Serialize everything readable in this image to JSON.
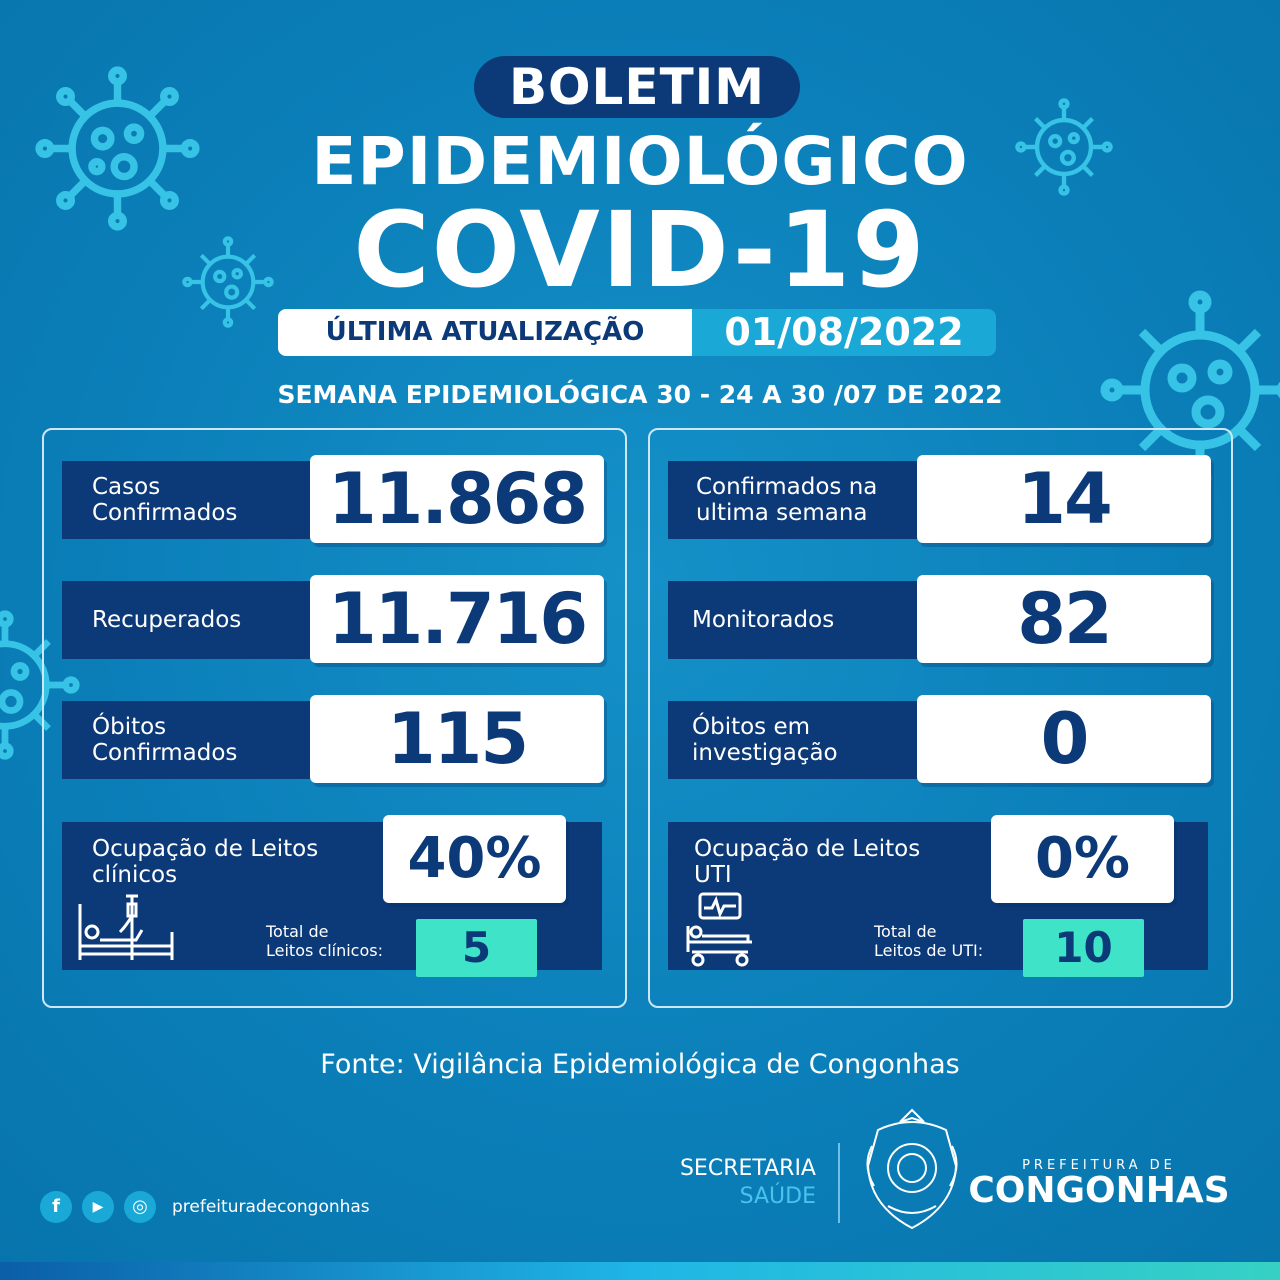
{
  "header": {
    "boletim": "BOLETIM",
    "title_line1": "EPIDEMIOLÓGICO",
    "title_line2": "COVID-19",
    "update_label": "ÚLTIMA ATUALIZAÇÃO",
    "update_date": "01/08/2022",
    "week": "SEMANA EPIDEMIOLÓGICA 30 - 24 A 30 /07 DE 2022"
  },
  "left_panel": {
    "rows": [
      {
        "label_line1": "Casos",
        "label_line2": "Confirmados",
        "value": "11.868"
      },
      {
        "label_line1": "Recuperados",
        "label_line2": "",
        "value": "11.716"
      },
      {
        "label_line1": "Óbitos",
        "label_line2": "Confirmados",
        "value": "115"
      }
    ],
    "occupancy": {
      "label_line1": "Ocupação de Leitos",
      "label_line2": "clínicos",
      "value": "40%",
      "total_label_line1": "Total de",
      "total_label_line2": "Leitos clínicos:",
      "total_value": "5",
      "icon": "hospital-bed-icon"
    }
  },
  "right_panel": {
    "rows": [
      {
        "label_line1": "Confirmados na",
        "label_line2": "ultima semana",
        "value": "14"
      },
      {
        "label_line1": "Monitorados",
        "label_line2": "",
        "value": "82"
      },
      {
        "label_line1": "Óbitos em",
        "label_line2": "investigação",
        "value": "0"
      }
    ],
    "occupancy": {
      "label_line1": "Ocupação de Leitos",
      "label_line2": "UTI",
      "value": "0%",
      "total_label_line1": "Total de",
      "total_label_line2": "Leitos de UTI:",
      "total_value": "10",
      "icon": "icu-bed-monitor-icon"
    }
  },
  "source": "Fonte: Vigilância Epidemiológica de Congonhas",
  "footer": {
    "secretaria": "SECRETARIA",
    "saude": "SAÚDE",
    "prefeitura_small": "PREFEITURA DE",
    "prefeitura_big": "CONGONHAS",
    "social_handle": "prefeituradecongonhas",
    "social_icons": [
      "facebook-icon",
      "youtube-icon",
      "instagram-icon"
    ],
    "social_glyphs": [
      "f",
      "▶",
      "◎"
    ]
  },
  "colors": {
    "background": "#0a7cb6",
    "navy": "#0c3a78",
    "accent": "#1aa9d6",
    "teal": "#3ee3c8"
  }
}
